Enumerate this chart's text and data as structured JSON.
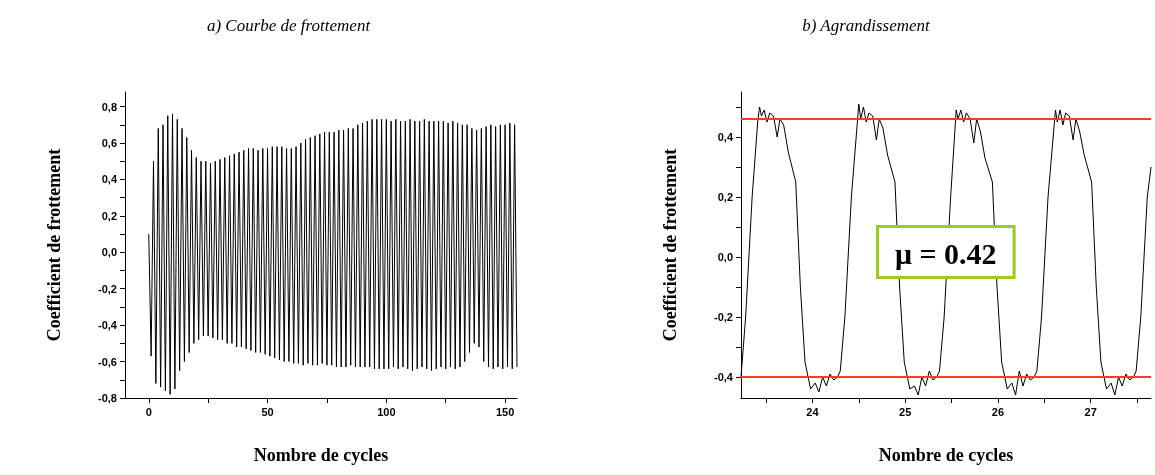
{
  "chart_data": [
    {
      "type": "line",
      "title": "a) Courbe de frottement",
      "xlabel": "Nombre de cycles",
      "ylabel": "Coefficient de frottement",
      "marker": "none",
      "xlim": [
        -10,
        155
      ],
      "ylim": [
        -0.8,
        0.88
      ],
      "xticks": [
        0,
        {
          "value": 25,
          "label": null
        },
        50,
        {
          "value": 75,
          "label": null
        },
        100,
        {
          "value": 125,
          "label": null
        },
        150
      ],
      "yticks": [
        {
          "value": -0.8,
          "label": "-0,8"
        },
        {
          "value": -0.7,
          "label": null
        },
        {
          "value": -0.6,
          "label": "-0,6"
        },
        {
          "value": -0.5,
          "label": null
        },
        {
          "value": -0.4,
          "label": "-0,4"
        },
        {
          "value": -0.3,
          "label": null
        },
        {
          "value": -0.2,
          "label": "-0,2"
        },
        {
          "value": -0.1,
          "label": null
        },
        {
          "value": 0,
          "label": "0,0"
        },
        {
          "value": 0.1,
          "label": null
        },
        {
          "value": 0.2,
          "label": "0,2"
        },
        {
          "value": 0.3,
          "label": null
        },
        {
          "value": 0.4,
          "label": "0,4"
        },
        {
          "value": 0.5,
          "label": null
        },
        {
          "value": 0.6,
          "label": "0,6"
        },
        {
          "value": 0.7,
          "label": null
        },
        {
          "value": 0.8,
          "label": "0,8"
        }
      ],
      "series": [
        {
          "color": "#000000",
          "x": [
            0,
            1,
            2,
            3,
            4,
            5,
            6,
            7,
            8,
            9,
            10,
            11,
            12,
            13,
            14,
            15,
            16,
            17,
            18,
            19,
            20,
            21,
            22,
            23,
            24,
            25,
            26,
            27,
            28,
            29,
            30,
            31,
            32,
            33,
            34,
            35,
            36,
            37,
            38,
            39,
            40,
            41,
            42,
            43,
            44,
            45,
            46,
            47,
            48,
            49,
            50,
            51,
            52,
            53,
            54,
            55,
            56,
            57,
            58,
            59,
            60,
            61,
            62,
            63,
            64,
            65,
            66,
            67,
            68,
            69,
            70,
            71,
            72,
            73,
            74,
            75,
            76,
            77,
            78,
            79,
            80,
            81,
            82,
            83,
            84,
            85,
            86,
            87,
            88,
            89,
            90,
            91,
            92,
            93,
            94,
            95,
            96,
            97,
            98,
            99,
            100,
            101,
            102,
            103,
            104,
            105,
            106,
            107,
            108,
            109,
            110,
            111,
            112,
            113,
            114,
            115,
            116,
            117,
            118,
            119,
            120,
            121,
            122,
            123,
            124,
            125,
            126,
            127,
            128,
            129,
            130,
            131,
            132,
            133,
            134,
            135,
            136,
            137,
            138,
            139,
            140,
            141,
            142,
            143,
            144,
            145,
            146,
            147,
            148,
            149,
            150,
            151,
            152,
            153,
            154,
            155
          ],
          "values": [
            0.1,
            -0.57,
            0.5,
            -0.72,
            0.68,
            -0.74,
            0.7,
            -0.76,
            0.75,
            -0.78,
            0.76,
            -0.75,
            0.73,
            -0.65,
            0.68,
            -0.6,
            0.63,
            -0.55,
            0.56,
            -0.5,
            0.52,
            -0.48,
            0.5,
            -0.46,
            0.5,
            -0.46,
            0.49,
            -0.47,
            0.5,
            -0.48,
            0.51,
            -0.48,
            0.52,
            -0.5,
            0.53,
            -0.5,
            0.54,
            -0.52,
            0.55,
            -0.52,
            0.56,
            -0.53,
            0.57,
            -0.54,
            0.57,
            -0.55,
            0.56,
            -0.55,
            0.57,
            -0.56,
            0.57,
            -0.57,
            0.58,
            -0.58,
            0.58,
            -0.59,
            0.58,
            -0.6,
            0.57,
            -0.6,
            0.57,
            -0.61,
            0.58,
            -0.61,
            0.6,
            -0.62,
            0.62,
            -0.61,
            0.63,
            -0.62,
            0.64,
            -0.62,
            0.65,
            -0.61,
            0.66,
            -0.62,
            0.66,
            -0.62,
            0.66,
            -0.63,
            0.67,
            -0.63,
            0.67,
            -0.63,
            0.68,
            -0.62,
            0.68,
            -0.63,
            0.7,
            -0.63,
            0.71,
            -0.63,
            0.72,
            -0.63,
            0.73,
            -0.64,
            0.73,
            -0.64,
            0.73,
            -0.64,
            0.73,
            -0.64,
            0.72,
            -0.63,
            0.73,
            -0.64,
            0.72,
            -0.63,
            0.72,
            -0.64,
            0.73,
            -0.65,
            0.72,
            -0.64,
            0.72,
            -0.63,
            0.73,
            -0.64,
            0.72,
            -0.65,
            0.72,
            -0.64,
            0.72,
            -0.63,
            0.72,
            -0.64,
            0.71,
            -0.63,
            0.72,
            -0.64,
            0.71,
            -0.63,
            0.7,
            -0.6,
            0.7,
            -0.55,
            0.68,
            -0.5,
            0.67,
            -0.52,
            0.68,
            -0.6,
            0.69,
            -0.63,
            0.7,
            -0.64,
            0.69,
            -0.63,
            0.7,
            -0.64,
            0.7,
            -0.63,
            0.71,
            -0.64,
            0.7,
            -0.63
          ]
        }
      ]
    },
    {
      "type": "line",
      "title": "b) Agrandissement",
      "xlabel": "Nombre de cycles",
      "ylabel": "Coefficient de frottement",
      "marker": "none",
      "xlim": [
        23.23,
        27.65
      ],
      "ylim": [
        -0.47,
        0.55
      ],
      "xticks": [
        {
          "value": 23.5,
          "label": null
        },
        24,
        {
          "value": 24.5,
          "label": null
        },
        25,
        {
          "value": 25.5,
          "label": null
        },
        26,
        {
          "value": 26.5,
          "label": null
        },
        27,
        {
          "value": 27.5,
          "label": null
        }
      ],
      "yticks": [
        {
          "value": -0.4,
          "label": "-0,4"
        },
        {
          "value": -0.3,
          "label": null
        },
        {
          "value": -0.2,
          "label": "-0,2"
        },
        {
          "value": -0.1,
          "label": null
        },
        {
          "value": 0,
          "label": "0,0"
        },
        {
          "value": 0.1,
          "label": null
        },
        {
          "value": 0.2,
          "label": "0,2"
        },
        {
          "value": 0.3,
          "label": null
        },
        {
          "value": 0.4,
          "label": "0,4"
        },
        {
          "value": 0.5,
          "label": null
        }
      ],
      "ref_lines": [
        {
          "axis": "y",
          "value": 0.46,
          "color": "#ff3a2a"
        },
        {
          "axis": "y",
          "value": -0.4,
          "color": "#ff3a2a"
        }
      ],
      "annotations": [
        "μ = 0.42"
      ],
      "series": [
        {
          "color": "#000000",
          "x": [
            23.23,
            23.28,
            23.35,
            23.41,
            23.43,
            23.45,
            23.48,
            23.51,
            23.54,
            23.58,
            23.62,
            23.65,
            23.69,
            23.74,
            23.82,
            23.87,
            23.92,
            23.98,
            24.03,
            24.07,
            24.11,
            24.15,
            24.19,
            24.23,
            24.27,
            24.3,
            24.35,
            24.42,
            24.5,
            24.52,
            24.55,
            24.58,
            24.61,
            24.65,
            24.69,
            24.72,
            24.76,
            24.81,
            24.89,
            24.94,
            24.99,
            25.05,
            25.1,
            25.14,
            25.18,
            25.22,
            25.26,
            25.3,
            25.34,
            25.37,
            25.42,
            25.49,
            25.55,
            25.57,
            25.6,
            25.63,
            25.66,
            25.7,
            25.74,
            25.77,
            25.81,
            25.86,
            25.94,
            25.99,
            26.04,
            26.1,
            26.15,
            26.19,
            26.23,
            26.27,
            26.31,
            26.35,
            26.39,
            26.42,
            26.47,
            26.54,
            26.62,
            26.64,
            26.67,
            26.7,
            26.73,
            26.77,
            26.81,
            26.84,
            26.88,
            26.93,
            27.01,
            27.06,
            27.11,
            27.17,
            27.22,
            27.26,
            27.3,
            27.34,
            27.38,
            27.42,
            27.46,
            27.49,
            27.54,
            27.61,
            27.65
          ],
          "values": [
            -0.4,
            -0.2,
            0.2,
            0.45,
            0.5,
            0.47,
            0.49,
            0.45,
            0.48,
            0.47,
            0.4,
            0.46,
            0.44,
            0.35,
            0.25,
            -0.1,
            -0.35,
            -0.44,
            -0.42,
            -0.45,
            -0.4,
            -0.43,
            -0.39,
            -0.41,
            -0.4,
            -0.38,
            -0.2,
            0.2,
            0.51,
            0.46,
            0.5,
            0.45,
            0.48,
            0.47,
            0.39,
            0.46,
            0.43,
            0.34,
            0.25,
            -0.1,
            -0.35,
            -0.44,
            -0.43,
            -0.46,
            -0.4,
            -0.43,
            -0.38,
            -0.41,
            -0.4,
            -0.38,
            -0.2,
            0.2,
            0.49,
            0.46,
            0.49,
            0.45,
            0.48,
            0.46,
            0.38,
            0.46,
            0.42,
            0.33,
            0.25,
            -0.1,
            -0.35,
            -0.44,
            -0.42,
            -0.46,
            -0.38,
            -0.43,
            -0.39,
            -0.41,
            -0.4,
            -0.38,
            -0.2,
            0.2,
            0.49,
            0.45,
            0.49,
            0.44,
            0.48,
            0.47,
            0.39,
            0.46,
            0.42,
            0.34,
            0.25,
            -0.1,
            -0.35,
            -0.44,
            -0.42,
            -0.46,
            -0.4,
            -0.43,
            -0.39,
            -0.41,
            -0.4,
            -0.38,
            -0.2,
            0.2,
            0.3
          ]
        }
      ]
    }
  ]
}
